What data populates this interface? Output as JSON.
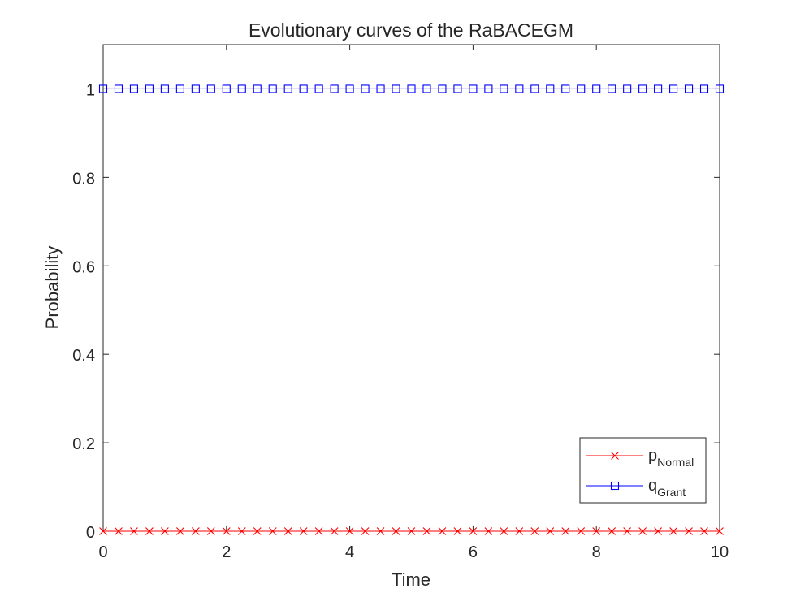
{
  "chart_data": {
    "type": "line",
    "title": "Evolutionary curves of the RaBACEGM",
    "xlabel": "Time",
    "ylabel": "Probability",
    "xlim": [
      0,
      10
    ],
    "ylim": [
      0,
      1.1
    ],
    "x_ticks": [
      0,
      2,
      4,
      6,
      8,
      10
    ],
    "y_ticks": [
      0,
      0.2,
      0.4,
      0.6,
      0.8,
      1
    ],
    "grid": false,
    "legend_position": "bottom-right",
    "series": [
      {
        "name": "p",
        "subscript": "Normal",
        "color": "#ff0000",
        "marker": "x",
        "x": [
          0,
          0.25,
          0.5,
          0.75,
          1,
          1.25,
          1.5,
          1.75,
          2,
          2.25,
          2.5,
          2.75,
          3,
          3.25,
          3.5,
          3.75,
          4,
          4.25,
          4.5,
          4.75,
          5,
          5.25,
          5.5,
          5.75,
          6,
          6.25,
          6.5,
          6.75,
          7,
          7.25,
          7.5,
          7.75,
          8,
          8.25,
          8.5,
          8.75,
          9,
          9.25,
          9.5,
          9.75,
          10
        ],
        "values": [
          0,
          0,
          0,
          0,
          0,
          0,
          0,
          0,
          0,
          0,
          0,
          0,
          0,
          0,
          0,
          0,
          0,
          0,
          0,
          0,
          0,
          0,
          0,
          0,
          0,
          0,
          0,
          0,
          0,
          0,
          0,
          0,
          0,
          0,
          0,
          0,
          0,
          0,
          0,
          0,
          0
        ]
      },
      {
        "name": "q",
        "subscript": "Grant",
        "color": "#0000ff",
        "marker": "square",
        "x": [
          0,
          0.25,
          0.5,
          0.75,
          1,
          1.25,
          1.5,
          1.75,
          2,
          2.25,
          2.5,
          2.75,
          3,
          3.25,
          3.5,
          3.75,
          4,
          4.25,
          4.5,
          4.75,
          5,
          5.25,
          5.5,
          5.75,
          6,
          6.25,
          6.5,
          6.75,
          7,
          7.25,
          7.5,
          7.75,
          8,
          8.25,
          8.5,
          8.75,
          9,
          9.25,
          9.5,
          9.75,
          10
        ],
        "values": [
          1,
          1,
          1,
          1,
          1,
          1,
          1,
          1,
          1,
          1,
          1,
          1,
          1,
          1,
          1,
          1,
          1,
          1,
          1,
          1,
          1,
          1,
          1,
          1,
          1,
          1,
          1,
          1,
          1,
          1,
          1,
          1,
          1,
          1,
          1,
          1,
          1,
          1,
          1,
          1,
          1
        ]
      }
    ]
  }
}
